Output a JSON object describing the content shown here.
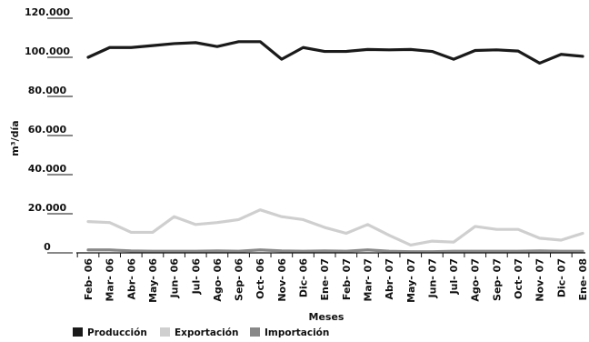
{
  "chart_data": {
    "type": "line",
    "xlabel": "Meses",
    "ylabel": "m³/día",
    "ylim": [
      0,
      120000
    ],
    "yticks": [
      0,
      20000,
      40000,
      60000,
      80000,
      100000,
      120000
    ],
    "ytick_labels": [
      "0",
      "20.000",
      "40.000",
      "60.000",
      "80.000",
      "100.000",
      "120.000"
    ],
    "grid": false,
    "legend_position": "bottom-left",
    "categories": [
      "Feb- 06",
      "Mar- 06",
      "Abr- 06",
      "May- 06",
      "Jun- 06",
      "Jul- 06",
      "Ago- 06",
      "Sep- 06",
      "Oct- 06",
      "Nov- 06",
      "Dic- 06",
      "Ene- 07",
      "Feb- 07",
      "Mar- 07",
      "Abr- 07",
      "May- 07",
      "Jun- 07",
      "Jul- 07",
      "Ago- 07",
      "Sep- 07",
      "Oct- 07",
      "Nov- 07",
      "Dic- 07",
      "Ene- 08"
    ],
    "series": [
      {
        "name": "Producción",
        "color": "#1a1a1a",
        "values": [
          100000,
          105000,
          105000,
          106000,
          107000,
          107500,
          105500,
          108000,
          108000,
          99000,
          105000,
          103000,
          103000,
          104000,
          103800,
          104000,
          103000,
          99000,
          103500,
          103800,
          103200,
          97000,
          101500,
          100500
        ]
      },
      {
        "name": "Exportación",
        "color": "#cfcfcf",
        "values": [
          16000,
          15500,
          10500,
          10500,
          18500,
          14500,
          15500,
          17000,
          22000,
          18500,
          17000,
          13000,
          10000,
          14500,
          9000,
          4000,
          6000,
          5500,
          13500,
          12000,
          12000,
          7500,
          6500,
          10000
        ]
      },
      {
        "name": "Importación",
        "color": "#888888",
        "values": [
          1500,
          1500,
          1000,
          800,
          800,
          800,
          1000,
          800,
          1500,
          1000,
          800,
          1000,
          800,
          1500,
          800,
          600,
          600,
          800,
          800,
          800,
          800,
          1000,
          800,
          800
        ]
      }
    ]
  }
}
